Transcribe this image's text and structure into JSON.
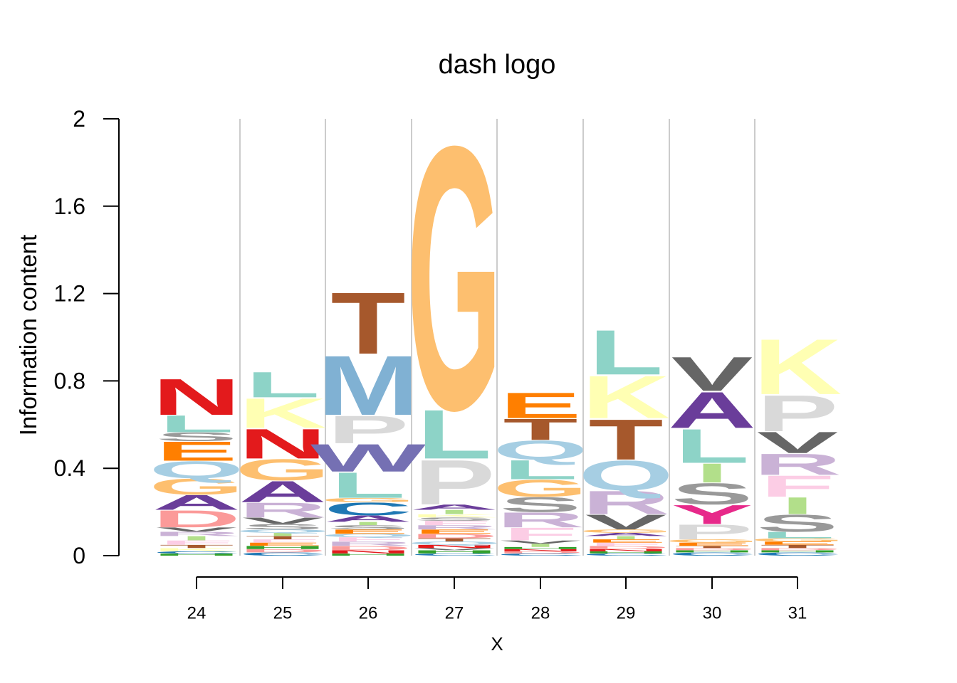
{
  "chart_data": {
    "type": "sequence-logo",
    "title": "dash logo",
    "xlabel": "X",
    "ylabel": "Information content",
    "ylim": [
      0,
      2
    ],
    "yticks": [
      "0",
      "0.4",
      "0.8",
      "1.2",
      "1.6",
      "2"
    ],
    "grid": "vertical lines between positions",
    "positions": [
      "24",
      "25",
      "26",
      "27",
      "28",
      "29",
      "30",
      "31"
    ],
    "colors": {
      "A": "#6a3d9a",
      "C": "#1f78b4",
      "D": "#fb9a99",
      "E": "#ff7f00",
      "F": "#fccde5",
      "G": "#fdbf6f",
      "H": "#33a02c",
      "I": "#b2df8a",
      "K": "#ffffb3",
      "L": "#8dd3c7",
      "M": "#80b1d3",
      "N": "#e31a1c",
      "P": "#d9d9d9",
      "Q": "#a6cee3",
      "R": "#cab2d6",
      "S": "#999999",
      "T": "#a6582c",
      "V": "#666666",
      "W": "#7570b3",
      "Y": "#e7298a"
    },
    "columns": [
      {
        "position": "24",
        "letters": [
          {
            "letter": "H",
            "height": 0.01
          },
          {
            "letter": "C",
            "height": 0.01
          },
          {
            "letter": "K",
            "height": 0.015
          },
          {
            "letter": "T",
            "height": 0.015
          },
          {
            "letter": "F",
            "height": 0.02
          },
          {
            "letter": "I",
            "height": 0.02
          },
          {
            "letter": "R",
            "height": 0.02
          },
          {
            "letter": "V",
            "height": 0.02
          },
          {
            "letter": "D",
            "height": 0.08
          },
          {
            "letter": "A",
            "height": 0.07
          },
          {
            "letter": "G",
            "height": 0.075
          },
          {
            "letter": "Q",
            "height": 0.08
          },
          {
            "letter": "E",
            "height": 0.09
          },
          {
            "letter": "S",
            "height": 0.04
          },
          {
            "letter": "L",
            "height": 0.08
          },
          {
            "letter": "N",
            "height": 0.17
          }
        ]
      },
      {
        "position": "25",
        "letters": [
          {
            "letter": "C",
            "height": 0.015
          },
          {
            "letter": "D",
            "height": 0.015
          },
          {
            "letter": "H",
            "height": 0.015
          },
          {
            "letter": "E",
            "height": 0.015
          },
          {
            "letter": "F",
            "height": 0.015
          },
          {
            "letter": "T",
            "height": 0.015
          },
          {
            "letter": "I",
            "height": 0.015
          },
          {
            "letter": "Q",
            "height": 0.015
          },
          {
            "letter": "S",
            "height": 0.025
          },
          {
            "letter": "V",
            "height": 0.03
          },
          {
            "letter": "R",
            "height": 0.07
          },
          {
            "letter": "A",
            "height": 0.1
          },
          {
            "letter": "G",
            "height": 0.1
          },
          {
            "letter": "N",
            "height": 0.14
          },
          {
            "letter": "K",
            "height": 0.14
          },
          {
            "letter": "L",
            "height": 0.12
          }
        ]
      },
      {
        "position": "26",
        "letters": [
          {
            "letter": "H",
            "height": 0.01
          },
          {
            "letter": "N",
            "height": 0.015
          },
          {
            "letter": "D",
            "height": 0.02
          },
          {
            "letter": "R",
            "height": 0.02
          },
          {
            "letter": "F",
            "height": 0.02
          },
          {
            "letter": "Q",
            "height": 0.015
          },
          {
            "letter": "E",
            "height": 0.02
          },
          {
            "letter": "S",
            "height": 0.02
          },
          {
            "letter": "I",
            "height": 0.015
          },
          {
            "letter": "A",
            "height": 0.03
          },
          {
            "letter": "C",
            "height": 0.06
          },
          {
            "letter": "G",
            "height": 0.02
          },
          {
            "letter": "L",
            "height": 0.12
          },
          {
            "letter": "W",
            "height": 0.13
          },
          {
            "letter": "P",
            "height": 0.13
          },
          {
            "letter": "M",
            "height": 0.28
          },
          {
            "letter": "T",
            "height": 0.29
          }
        ]
      },
      {
        "position": "27",
        "letters": [
          {
            "letter": "C",
            "height": 0.01
          },
          {
            "letter": "H",
            "height": 0.015
          },
          {
            "letter": "V",
            "height": 0.01
          },
          {
            "letter": "N",
            "height": 0.015
          },
          {
            "letter": "Q",
            "height": 0.015
          },
          {
            "letter": "T",
            "height": 0.015
          },
          {
            "letter": "D",
            "height": 0.02
          },
          {
            "letter": "E",
            "height": 0.02
          },
          {
            "letter": "R",
            "height": 0.02
          },
          {
            "letter": "F",
            "height": 0.02
          },
          {
            "letter": "S",
            "height": 0.015
          },
          {
            "letter": "K",
            "height": 0.015
          },
          {
            "letter": "I",
            "height": 0.02
          },
          {
            "letter": "A",
            "height": 0.025
          },
          {
            "letter": "P",
            "height": 0.21
          },
          {
            "letter": "L",
            "height": 0.23
          },
          {
            "letter": "G",
            "height": 1.24
          }
        ]
      },
      {
        "position": "28",
        "letters": [
          {
            "letter": "C",
            "height": 0.01
          },
          {
            "letter": "D",
            "height": 0.01
          },
          {
            "letter": "N",
            "height": 0.01
          },
          {
            "letter": "H",
            "height": 0.01
          },
          {
            "letter": "I",
            "height": 0.015
          },
          {
            "letter": "V",
            "height": 0.015
          },
          {
            "letter": "F",
            "height": 0.06
          },
          {
            "letter": "R",
            "height": 0.07
          },
          {
            "letter": "S",
            "height": 0.07
          },
          {
            "letter": "G",
            "height": 0.08
          },
          {
            "letter": "L",
            "height": 0.09
          },
          {
            "letter": "Q",
            "height": 0.09
          },
          {
            "letter": "T",
            "height": 0.1
          },
          {
            "letter": "E",
            "height": 0.12
          }
        ]
      },
      {
        "position": "29",
        "letters": [
          {
            "letter": "C",
            "height": 0.01
          },
          {
            "letter": "H",
            "height": 0.01
          },
          {
            "letter": "N",
            "height": 0.01
          },
          {
            "letter": "D",
            "height": 0.015
          },
          {
            "letter": "F",
            "height": 0.015
          },
          {
            "letter": "E",
            "height": 0.015
          },
          {
            "letter": "I",
            "height": 0.015
          },
          {
            "letter": "A",
            "height": 0.015
          },
          {
            "letter": "G",
            "height": 0.015
          },
          {
            "letter": "V",
            "height": 0.07
          },
          {
            "letter": "R",
            "height": 0.11
          },
          {
            "letter": "Q",
            "height": 0.14
          },
          {
            "letter": "T",
            "height": 0.19
          },
          {
            "letter": "K",
            "height": 0.2
          },
          {
            "letter": "L",
            "height": 0.21
          }
        ]
      },
      {
        "position": "30",
        "letters": [
          {
            "letter": "C",
            "height": 0.015
          },
          {
            "letter": "H",
            "height": 0.01
          },
          {
            "letter": "D",
            "height": 0.01
          },
          {
            "letter": "T",
            "height": 0.01
          },
          {
            "letter": "E",
            "height": 0.015
          },
          {
            "letter": "G",
            "height": 0.015
          },
          {
            "letter": "P",
            "height": 0.07
          },
          {
            "letter": "Y",
            "height": 0.09
          },
          {
            "letter": "S",
            "height": 0.1
          },
          {
            "letter": "I",
            "height": 0.09
          },
          {
            "letter": "L",
            "height": 0.16
          },
          {
            "letter": "A",
            "height": 0.17
          },
          {
            "letter": "V",
            "height": 0.16
          }
        ]
      },
      {
        "position": "31",
        "letters": [
          {
            "letter": "C",
            "height": 0.015
          },
          {
            "letter": "H",
            "height": 0.01
          },
          {
            "letter": "D",
            "height": 0.01
          },
          {
            "letter": "T",
            "height": 0.015
          },
          {
            "letter": "E",
            "height": 0.015
          },
          {
            "letter": "G",
            "height": 0.015
          },
          {
            "letter": "L",
            "height": 0.03
          },
          {
            "letter": "S",
            "height": 0.08
          },
          {
            "letter": "I",
            "height": 0.08
          },
          {
            "letter": "F",
            "height": 0.1
          },
          {
            "letter": "R",
            "height": 0.1
          },
          {
            "letter": "V",
            "height": 0.1
          },
          {
            "letter": "P",
            "height": 0.17
          },
          {
            "letter": "K",
            "height": 0.26
          }
        ]
      }
    ]
  }
}
